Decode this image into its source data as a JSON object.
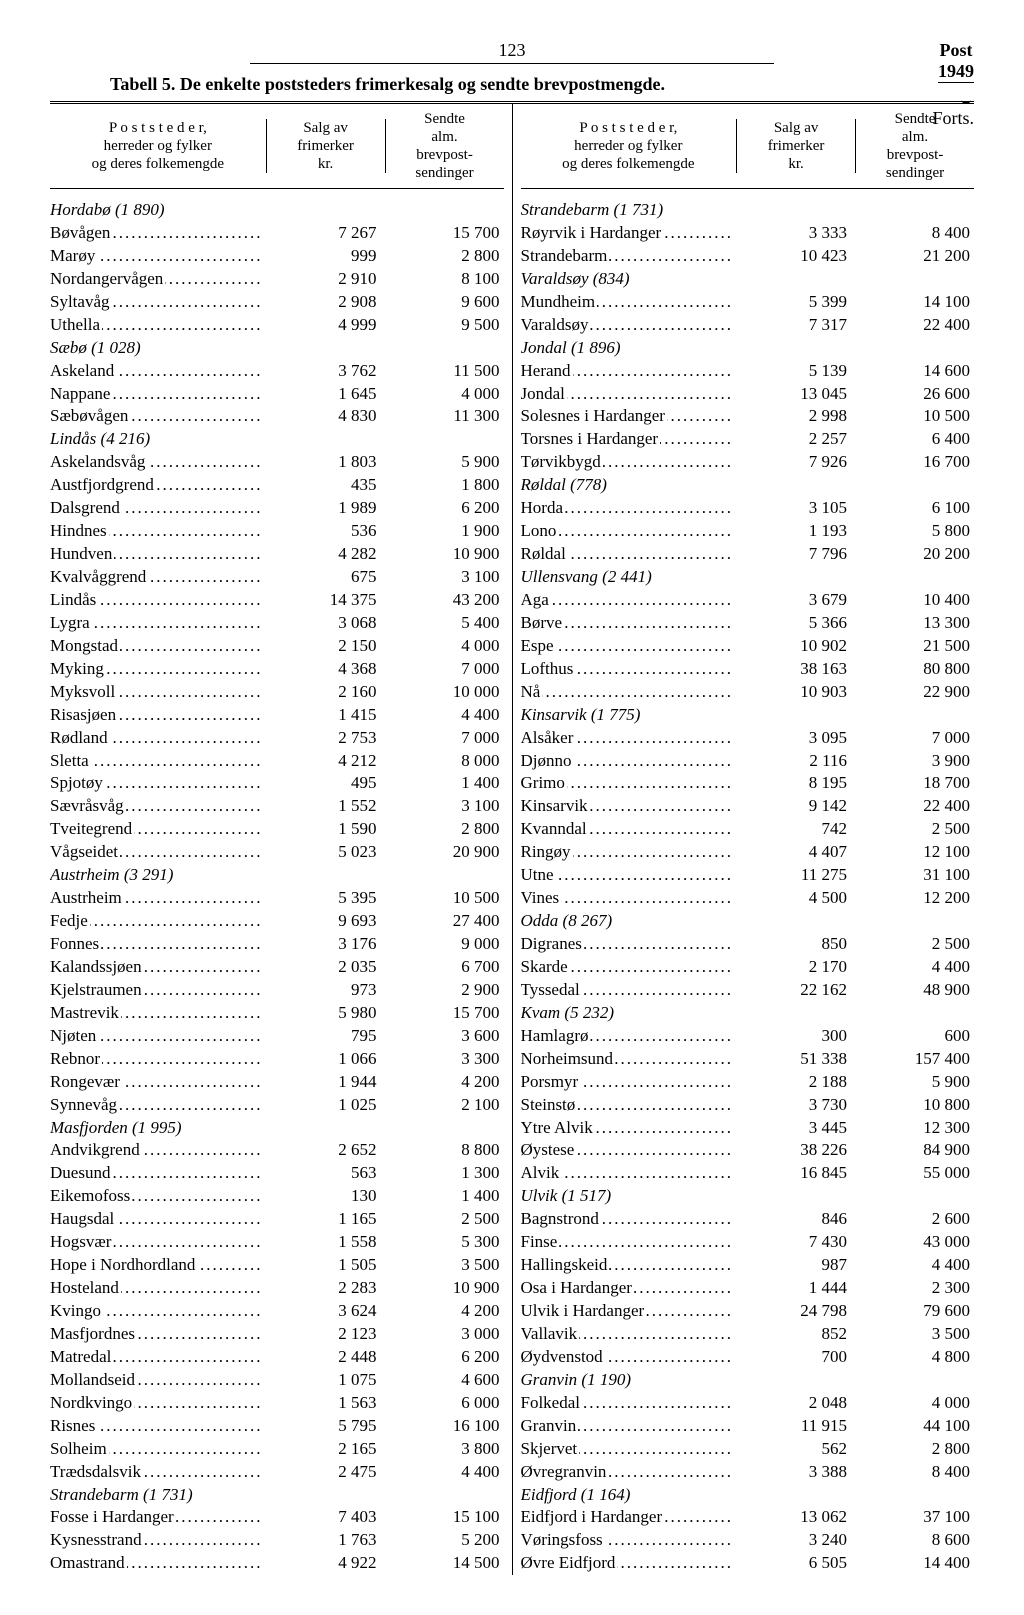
{
  "page_number": "123",
  "corner_label": "Post",
  "corner_year": "1949",
  "forts": "Forts.",
  "caption": "Tabell 5. De enkelte poststeders frimerkesalg og sendte brevpostmengde.",
  "headers": {
    "h1a": "P o s t s t e d e r,",
    "h1b": "herreder og fylker",
    "h1c": "og deres folkemengde",
    "h2a": "Salg av",
    "h2b": "frimerker",
    "h2c": "kr.",
    "h3a": "Sendte",
    "h3b": "alm.",
    "h3c": "brevpost-",
    "h3d": "sendinger"
  },
  "left": [
    {
      "name": "Hordabø (1 890)",
      "region": true
    },
    {
      "name": "Bøvågen",
      "sales": "7 267",
      "send": "15 700"
    },
    {
      "name": "Marøy",
      "sales": "999",
      "send": "2 800"
    },
    {
      "name": "Nordangervågen",
      "sales": "2 910",
      "send": "8 100"
    },
    {
      "name": "Syltavåg",
      "sales": "2 908",
      "send": "9 600"
    },
    {
      "name": "Uthella",
      "sales": "4 999",
      "send": "9 500"
    },
    {
      "name": "Sæbø (1 028)",
      "region": true
    },
    {
      "name": "Askeland",
      "sales": "3 762",
      "send": "11 500"
    },
    {
      "name": "Nappane",
      "sales": "1 645",
      "send": "4 000"
    },
    {
      "name": "Sæbøvågen",
      "sales": "4 830",
      "send": "11 300"
    },
    {
      "name": "Lindås (4 216)",
      "region": true
    },
    {
      "name": "Askelandsvåg",
      "sales": "1 803",
      "send": "5 900"
    },
    {
      "name": "Austfjordgrend",
      "sales": "435",
      "send": "1 800"
    },
    {
      "name": "Dalsgrend",
      "sales": "1 989",
      "send": "6 200"
    },
    {
      "name": "Hindnes",
      "sales": "536",
      "send": "1 900"
    },
    {
      "name": "Hundven",
      "sales": "4 282",
      "send": "10 900"
    },
    {
      "name": "Kvalvåggrend",
      "sales": "675",
      "send": "3 100"
    },
    {
      "name": "Lindås",
      "sales": "14 375",
      "send": "43 200"
    },
    {
      "name": "Lygra",
      "sales": "3 068",
      "send": "5 400"
    },
    {
      "name": "Mongstad",
      "sales": "2 150",
      "send": "4 000"
    },
    {
      "name": "Myking",
      "sales": "4 368",
      "send": "7 000"
    },
    {
      "name": "Myksvoll",
      "sales": "2 160",
      "send": "10 000"
    },
    {
      "name": "Risasjøen",
      "sales": "1 415",
      "send": "4 400"
    },
    {
      "name": "Rødland",
      "sales": "2 753",
      "send": "7 000"
    },
    {
      "name": "Sletta",
      "sales": "4 212",
      "send": "8 000"
    },
    {
      "name": "Spjotøy",
      "sales": "495",
      "send": "1 400"
    },
    {
      "name": "Sævråsvåg",
      "sales": "1 552",
      "send": "3 100"
    },
    {
      "name": "Tveitegrend",
      "sales": "1 590",
      "send": "2 800"
    },
    {
      "name": "Vågseidet",
      "sales": "5 023",
      "send": "20 900"
    },
    {
      "name": "Austrheim (3 291)",
      "region": true
    },
    {
      "name": "Austrheim",
      "sales": "5 395",
      "send": "10 500"
    },
    {
      "name": "Fedje",
      "sales": "9 693",
      "send": "27 400"
    },
    {
      "name": "Fonnes",
      "sales": "3 176",
      "send": "9 000"
    },
    {
      "name": "Kalandssjøen",
      "sales": "2 035",
      "send": "6 700"
    },
    {
      "name": "Kjelstraumen",
      "sales": "973",
      "send": "2 900"
    },
    {
      "name": "Mastrevik",
      "sales": "5 980",
      "send": "15 700"
    },
    {
      "name": "Njøten",
      "sales": "795",
      "send": "3 600"
    },
    {
      "name": "Rebnor",
      "sales": "1 066",
      "send": "3 300"
    },
    {
      "name": "Rongevær",
      "sales": "1 944",
      "send": "4 200"
    },
    {
      "name": "Synnevåg",
      "sales": "1 025",
      "send": "2 100"
    },
    {
      "name": "Masfjorden (1 995)",
      "region": true
    },
    {
      "name": "Andvikgrend",
      "sales": "2 652",
      "send": "8 800"
    },
    {
      "name": "Duesund",
      "sales": "563",
      "send": "1 300"
    },
    {
      "name": "Eikemofoss",
      "sales": "130",
      "send": "1 400"
    },
    {
      "name": "Haugsdal",
      "sales": "1 165",
      "send": "2 500"
    },
    {
      "name": "Hogsvær",
      "sales": "1 558",
      "send": "5 300"
    },
    {
      "name": "Hope i Nordhordland",
      "sales": "1 505",
      "send": "3 500"
    },
    {
      "name": "Hosteland",
      "sales": "2 283",
      "send": "10 900"
    },
    {
      "name": "Kvingo",
      "sales": "3 624",
      "send": "4 200"
    },
    {
      "name": "Masfjordnes",
      "sales": "2 123",
      "send": "3 000"
    },
    {
      "name": "Matredal",
      "sales": "2 448",
      "send": "6 200"
    },
    {
      "name": "Mollandseid",
      "sales": "1 075",
      "send": "4 600"
    },
    {
      "name": "Nordkvingo",
      "sales": "1 563",
      "send": "6 000"
    },
    {
      "name": "Risnes",
      "sales": "5 795",
      "send": "16 100"
    },
    {
      "name": "Solheim",
      "sales": "2 165",
      "send": "3 800"
    },
    {
      "name": "Trædsdalsvik",
      "sales": "2 475",
      "send": "4 400"
    },
    {
      "name": "Strandebarm (1 731)",
      "region": true
    },
    {
      "name": "Fosse i Hardanger",
      "sales": "7 403",
      "send": "15 100"
    },
    {
      "name": "Kysnesstrand",
      "sales": "1 763",
      "send": "5 200"
    },
    {
      "name": "Omastrand",
      "sales": "4 922",
      "send": "14 500"
    }
  ],
  "right": [
    {
      "name": "Strandebarm (1 731)",
      "region": true
    },
    {
      "name": "Røyrvik i Hardanger",
      "sales": "3 333",
      "send": "8 400"
    },
    {
      "name": "Strandebarm",
      "sales": "10 423",
      "send": "21 200"
    },
    {
      "name": "Varaldsøy (834)",
      "region": true
    },
    {
      "name": "Mundheim",
      "sales": "5 399",
      "send": "14 100"
    },
    {
      "name": "Varaldsøy",
      "sales": "7 317",
      "send": "22 400"
    },
    {
      "name": "Jondal (1 896)",
      "region": true
    },
    {
      "name": "Herand",
      "sales": "5 139",
      "send": "14 600"
    },
    {
      "name": "Jondal",
      "sales": "13 045",
      "send": "26 600"
    },
    {
      "name": "Solesnes i Hardanger",
      "sales": "2 998",
      "send": "10 500"
    },
    {
      "name": "Torsnes i Hardanger",
      "sales": "2 257",
      "send": "6 400"
    },
    {
      "name": "Tørvikbygd",
      "sales": "7 926",
      "send": "16 700"
    },
    {
      "name": "Røldal (778)",
      "region": true
    },
    {
      "name": "Horda",
      "sales": "3 105",
      "send": "6 100"
    },
    {
      "name": "Lono",
      "sales": "1 193",
      "send": "5 800"
    },
    {
      "name": "Røldal",
      "sales": "7 796",
      "send": "20 200"
    },
    {
      "name": "Ullensvang (2 441)",
      "region": true
    },
    {
      "name": "Aga",
      "sales": "3 679",
      "send": "10 400"
    },
    {
      "name": "Børve",
      "sales": "5 366",
      "send": "13 300"
    },
    {
      "name": "Espe",
      "sales": "10 902",
      "send": "21 500"
    },
    {
      "name": "Lofthus",
      "sales": "38 163",
      "send": "80 800"
    },
    {
      "name": "Nå",
      "sales": "10 903",
      "send": "22 900"
    },
    {
      "name": "Kinsarvik (1 775)",
      "region": true
    },
    {
      "name": "Alsåker",
      "sales": "3 095",
      "send": "7 000"
    },
    {
      "name": "Djønno",
      "sales": "2 116",
      "send": "3 900"
    },
    {
      "name": "Grimo",
      "sales": "8 195",
      "send": "18 700"
    },
    {
      "name": "Kinsarvik",
      "sales": "9 142",
      "send": "22 400"
    },
    {
      "name": "Kvanndal",
      "sales": "742",
      "send": "2 500"
    },
    {
      "name": "Ringøy",
      "sales": "4 407",
      "send": "12 100"
    },
    {
      "name": "Utne",
      "sales": "11 275",
      "send": "31 100"
    },
    {
      "name": "Vines",
      "sales": "4 500",
      "send": "12 200"
    },
    {
      "name": "Odda (8 267)",
      "region": true
    },
    {
      "name": "Digranes",
      "sales": "850",
      "send": "2 500"
    },
    {
      "name": "Skarde",
      "sales": "2 170",
      "send": "4 400"
    },
    {
      "name": "Tyssedal",
      "sales": "22 162",
      "send": "48 900"
    },
    {
      "name": "Kvam (5 232)",
      "region": true
    },
    {
      "name": "Hamlagrø",
      "sales": "300",
      "send": "600"
    },
    {
      "name": "Norheimsund",
      "sales": "51 338",
      "send": "157 400"
    },
    {
      "name": "Porsmyr",
      "sales": "2 188",
      "send": "5 900"
    },
    {
      "name": "Steinstø",
      "sales": "3 730",
      "send": "10 800"
    },
    {
      "name": "Ytre Alvik",
      "sales": "3 445",
      "send": "12 300"
    },
    {
      "name": "Øystese",
      "sales": "38 226",
      "send": "84 900"
    },
    {
      "name": "Alvik",
      "sales": "16 845",
      "send": "55 000"
    },
    {
      "name": "Ulvik (1 517)",
      "region": true
    },
    {
      "name": "Bagnstrond",
      "sales": "846",
      "send": "2 600"
    },
    {
      "name": "Finse",
      "sales": "7 430",
      "send": "43 000"
    },
    {
      "name": "Hallingskeid",
      "sales": "987",
      "send": "4 400"
    },
    {
      "name": "Osa i Hardanger",
      "sales": "1 444",
      "send": "2 300"
    },
    {
      "name": "Ulvik i Hardanger",
      "sales": "24 798",
      "send": "79 600"
    },
    {
      "name": "Vallavik",
      "sales": "852",
      "send": "3 500"
    },
    {
      "name": "Øydvenstod",
      "sales": "700",
      "send": "4 800"
    },
    {
      "name": "Granvin (1 190)",
      "region": true
    },
    {
      "name": "Folkedal",
      "sales": "2 048",
      "send": "4 000"
    },
    {
      "name": "Granvin",
      "sales": "11 915",
      "send": "44 100"
    },
    {
      "name": "Skjervet",
      "sales": "562",
      "send": "2 800"
    },
    {
      "name": "Øvregranvin",
      "sales": "3 388",
      "send": "8 400"
    },
    {
      "name": "Eidfjord (1 164)",
      "region": true
    },
    {
      "name": "Eidfjord i Hardanger",
      "sales": "13 062",
      "send": "37 100"
    },
    {
      "name": "Vøringsfoss",
      "sales": "3 240",
      "send": "8 600"
    },
    {
      "name": "Øvre Eidfjord",
      "sales": "6 505",
      "send": "14 400"
    }
  ]
}
